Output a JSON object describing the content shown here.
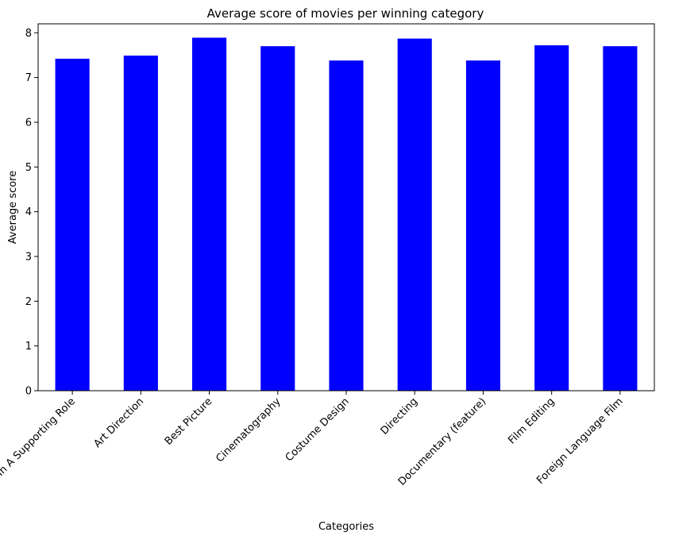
{
  "chart_data": {
    "type": "bar",
    "title": "Average score of movies per winning category",
    "xlabel": "Categories",
    "ylabel": "Average score",
    "categories": [
      "Actress In A Supporting Role",
      "Art Direction",
      "Best Picture",
      "Cinematography",
      "Costume Design",
      "Directing",
      "Documentary (feature)",
      "Film Editing",
      "Foreign Language Film"
    ],
    "values": [
      7.42,
      7.49,
      7.89,
      7.7,
      7.38,
      7.87,
      7.38,
      7.72,
      7.7
    ],
    "ylim": [
      0,
      8.2
    ],
    "yticks": [
      0,
      1,
      2,
      3,
      4,
      5,
      6,
      7,
      8
    ],
    "bar_color": "#0000ff",
    "grid": false,
    "legend": "none"
  }
}
